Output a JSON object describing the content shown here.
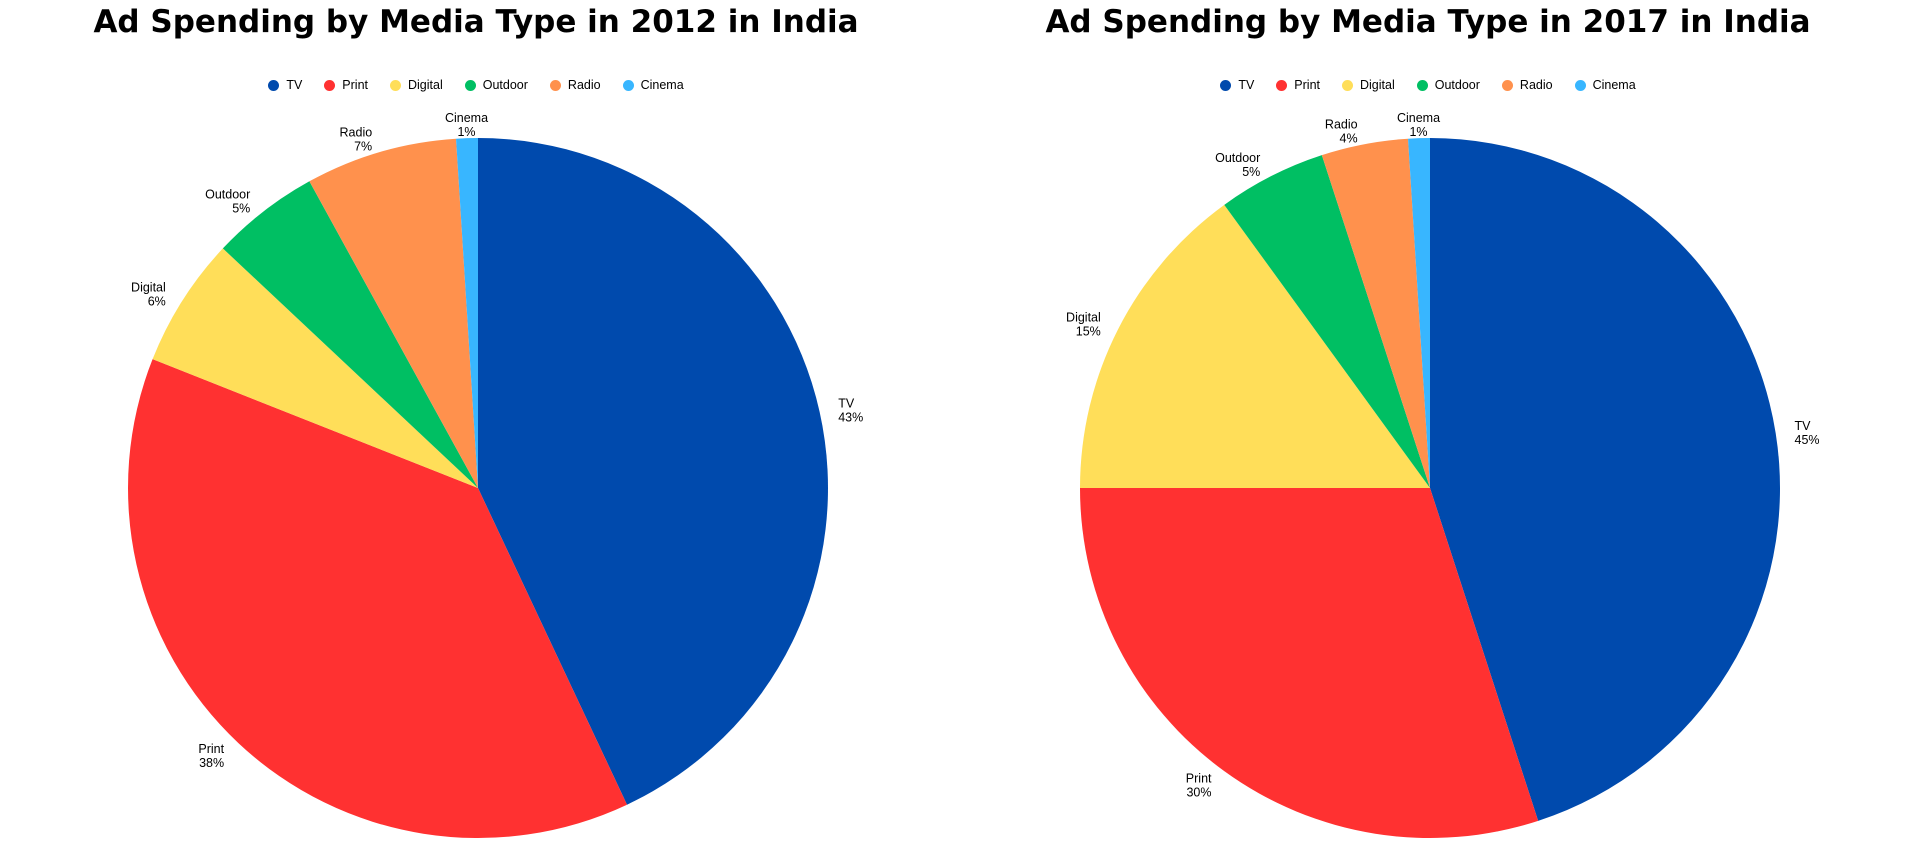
{
  "chart_data": [
    {
      "type": "pie",
      "title": "Ad Spending by Media Type in 2012 in India",
      "categories": [
        "TV",
        "Print",
        "Digital",
        "Outdoor",
        "Radio",
        "Cinema"
      ],
      "values": [
        43,
        38,
        6,
        5,
        7,
        1
      ],
      "value_labels": [
        "43%",
        "38%",
        "6%",
        "5%",
        "7%",
        "1%"
      ],
      "colors": [
        "#004AAD",
        "#FF3131",
        "#FFDE59",
        "#00BF63",
        "#FF914D",
        "#38B6FF"
      ],
      "legend": "top-center"
    },
    {
      "type": "pie",
      "title": "Ad Spending by Media Type in 2017 in India",
      "categories": [
        "TV",
        "Print",
        "Digital",
        "Outdoor",
        "Radio",
        "Cinema"
      ],
      "values": [
        45,
        30,
        15,
        5,
        4,
        1
      ],
      "value_labels": [
        "45%",
        "30%",
        "15%",
        "5%",
        "4%",
        "1%"
      ],
      "colors": [
        "#004AAD",
        "#FF3131",
        "#FFDE59",
        "#00BF63",
        "#FF914D",
        "#38B6FF"
      ],
      "legend": "top-center"
    }
  ]
}
